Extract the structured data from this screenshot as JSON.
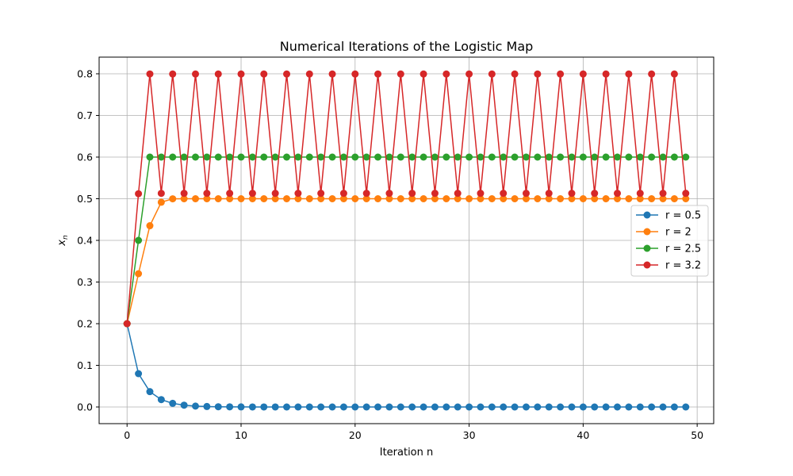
{
  "chart_data": {
    "type": "line",
    "title": "Numerical Iterations of the Logistic Map",
    "xlabel": "Iteration n",
    "ylabel_main": "x",
    "ylabel_sub": "n",
    "xlim": [
      -2.45,
      51.45
    ],
    "ylim": [
      -0.04,
      0.84
    ],
    "xticks": [
      0,
      10,
      20,
      30,
      40,
      50
    ],
    "yticks": [
      0.0,
      0.1,
      0.2,
      0.3,
      0.4,
      0.5,
      0.6,
      0.7,
      0.8
    ],
    "ytick_labels": [
      "0.0",
      "0.1",
      "0.2",
      "0.3",
      "0.4",
      "0.5",
      "0.6",
      "0.7",
      "0.8"
    ],
    "grid": true,
    "legend_position": "center-right",
    "marker": "circle",
    "series": [
      {
        "name": "r = 0.5",
        "color": "#1f77b4",
        "r": 0.5,
        "x0": 0.2,
        "n": 50
      },
      {
        "name": "r = 2",
        "color": "#ff7f0e",
        "r": 2,
        "x0": 0.2,
        "n": 50
      },
      {
        "name": "r = 2.5",
        "color": "#2ca02c",
        "r": 2.5,
        "x0": 0.2,
        "n": 50
      },
      {
        "name": "r = 3.2",
        "color": "#d62728",
        "r": 3.2,
        "x0": 0.2,
        "n": 50
      }
    ]
  }
}
